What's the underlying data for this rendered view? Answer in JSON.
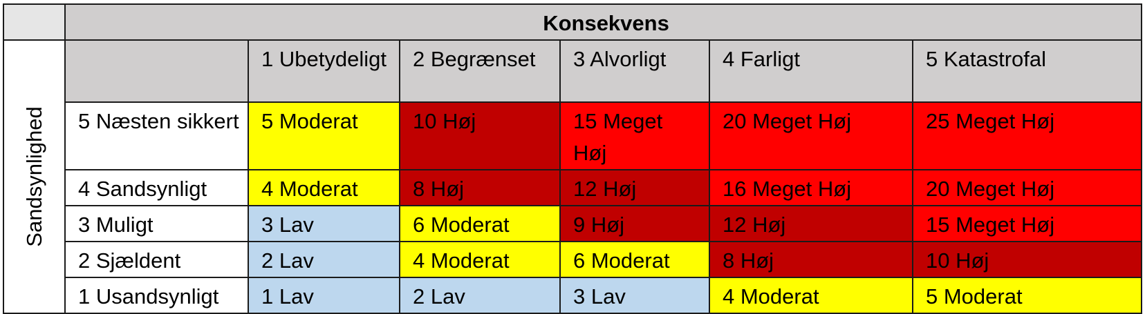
{
  "table": {
    "title": "Konsekvens",
    "side_label": "Sandsynlighed",
    "columns": [
      "1 Ubetydeligt",
      "2 Begrænset",
      "3 Alvorligt",
      "4 Farligt",
      "5 Katastrofal"
    ],
    "rows": [
      {
        "label": "5 Næsten sikkert",
        "cells": [
          {
            "text": "5 Moderat",
            "level": "moderat"
          },
          {
            "text": "10 Høj",
            "level": "hoj"
          },
          {
            "text": "15 Meget Høj",
            "level": "meget"
          },
          {
            "text": "20 Meget Høj",
            "level": "meget"
          },
          {
            "text": "25 Meget Høj",
            "level": "meget"
          }
        ]
      },
      {
        "label": "4 Sandsynligt",
        "cells": [
          {
            "text": "4 Moderat",
            "level": "moderat"
          },
          {
            "text": "8 Høj",
            "level": "hoj"
          },
          {
            "text": "12 Høj",
            "level": "hoj"
          },
          {
            "text": "16 Meget Høj",
            "level": "meget"
          },
          {
            "text": "20 Meget Høj",
            "level": "meget"
          }
        ]
      },
      {
        "label": "3 Muligt",
        "cells": [
          {
            "text": "3 Lav",
            "level": "lav"
          },
          {
            "text": "6 Moderat",
            "level": "moderat"
          },
          {
            "text": "9 Høj",
            "level": "hoj"
          },
          {
            "text": "12 Høj",
            "level": "hoj"
          },
          {
            "text": "15 Meget Høj",
            "level": "meget"
          }
        ]
      },
      {
        "label": "2 Sjældent",
        "cells": [
          {
            "text": "2 Lav",
            "level": "lav"
          },
          {
            "text": "4 Moderat",
            "level": "moderat"
          },
          {
            "text": "6 Moderat",
            "level": "moderat"
          },
          {
            "text": "8 Høj",
            "level": "hoj"
          },
          {
            "text": "10 Høj",
            "level": "hoj"
          }
        ]
      },
      {
        "label": "1 Usandsynligt",
        "cells": [
          {
            "text": "1 Lav",
            "level": "lav"
          },
          {
            "text": "2 Lav",
            "level": "lav"
          },
          {
            "text": "3 Lav",
            "level": "lav"
          },
          {
            "text": "4 Moderat",
            "level": "moderat"
          },
          {
            "text": "5 Moderat",
            "level": "moderat"
          }
        ]
      }
    ]
  }
}
